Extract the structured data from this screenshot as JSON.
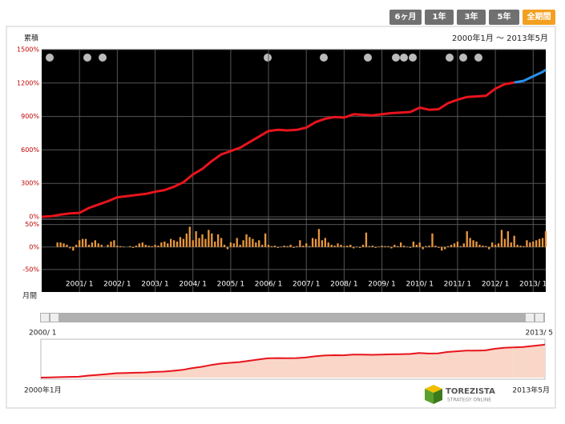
{
  "ui": {
    "buttons": [
      "6ヶ月",
      "1年",
      "3年",
      "5年",
      "全期間"
    ],
    "cumulative_label": "累積",
    "date_range": "2000年1月 〜 2013年5月",
    "monthly_label": "月間",
    "overview_start": "2000/ 1",
    "overview_end": "2013/ 5",
    "range_start": "2000年1月",
    "range_end": "2013年5月",
    "logo_name": "TOREZISTA",
    "logo_sub": "STRATEGY ONLINE"
  },
  "chart_data": [
    {
      "type": "line",
      "x": [
        "2000-01",
        "2000-04",
        "2000-07",
        "2000-10",
        "2001-01",
        "2001-04",
        "2001-07",
        "2001-10",
        "2002-01",
        "2002-04",
        "2002-07",
        "2002-10",
        "2003-01",
        "2003-04",
        "2003-07",
        "2003-10",
        "2004-01",
        "2004-04",
        "2004-07",
        "2004-10",
        "2005-01",
        "2005-04",
        "2005-07",
        "2005-10",
        "2006-01",
        "2006-04",
        "2006-07",
        "2006-10",
        "2007-01",
        "2007-04",
        "2007-07",
        "2007-10",
        "2008-01",
        "2008-04",
        "2008-07",
        "2008-10",
        "2009-01",
        "2009-04",
        "2009-07",
        "2009-10",
        "2010-01",
        "2010-04",
        "2010-07",
        "2010-10",
        "2011-01",
        "2011-04",
        "2011-07",
        "2011-10",
        "2012-01",
        "2012-04",
        "2012-07",
        "2012-10",
        "2013-01",
        "2013-04",
        "2013-05"
      ],
      "series": [
        {
          "color": "#e8141c",
          "values": [
            0,
            5,
            20,
            30,
            35,
            80,
            110,
            140,
            175,
            185,
            195,
            205,
            225,
            240,
            270,
            310,
            380,
            430,
            500,
            560,
            590,
            620,
            670,
            720,
            770,
            780,
            775,
            780,
            800,
            850,
            880,
            895,
            890,
            920,
            915,
            910,
            920,
            930,
            935,
            940,
            980,
            960,
            965,
            1020,
            1050,
            1075,
            1080,
            1085,
            1150,
            1190,
            1205,
            null,
            null,
            null,
            null
          ]
        },
        {
          "color": "#2a8fe8",
          "values": [
            null,
            null,
            null,
            null,
            null,
            null,
            null,
            null,
            null,
            null,
            null,
            null,
            null,
            null,
            null,
            null,
            null,
            null,
            null,
            null,
            null,
            null,
            null,
            null,
            null,
            null,
            null,
            null,
            null,
            null,
            null,
            null,
            null,
            null,
            null,
            null,
            null,
            null,
            null,
            null,
            null,
            null,
            null,
            null,
            null,
            null,
            null,
            null,
            null,
            null,
            1205,
            1220,
            1260,
            1300,
            1320
          ]
        }
      ],
      "xlim": [
        "2000-01",
        "2013-05"
      ],
      "xticks": [
        {
          "value": "2001-01",
          "label": "2001/ 1"
        },
        {
          "value": "2002-01",
          "label": "2002/ 1"
        },
        {
          "value": "2003-01",
          "label": "2003/ 1"
        },
        {
          "value": "2004-01",
          "label": "2004/ 1"
        },
        {
          "value": "2005-01",
          "label": "2005/ 1"
        },
        {
          "value": "2006-01",
          "label": "2006/ 1"
        },
        {
          "value": "2007-01",
          "label": "2007/ 1"
        },
        {
          "value": "2008-01",
          "label": "2008/ 1"
        },
        {
          "value": "2009-01",
          "label": "2009/ 1"
        },
        {
          "value": "2010-01",
          "label": "2010/ 1"
        },
        {
          "value": "2011-01",
          "label": "2011/ 1"
        },
        {
          "value": "2012-01",
          "label": "2012/ 1"
        },
        {
          "value": "2013-01",
          "label": "2013/ 1"
        }
      ],
      "ylim": [
        0,
        1500
      ],
      "yticks": [
        {
          "value": 0,
          "label": "0%"
        },
        {
          "value": 300,
          "label": "300%"
        },
        {
          "value": 600,
          "label": "600%"
        },
        {
          "value": 900,
          "label": "900%"
        },
        {
          "value": 1200,
          "label": "1200%"
        },
        {
          "value": 1500,
          "label": "1500%"
        }
      ],
      "grid": true
    },
    {
      "type": "bar",
      "color": "#e8963c",
      "x": [
        "2000-01",
        "2000-02",
        "2000-03",
        "2000-04",
        "2000-05",
        "2000-06",
        "2000-07",
        "2000-08",
        "2000-09",
        "2000-10",
        "2000-11",
        "2000-12",
        "2001-01",
        "2001-02",
        "2001-03",
        "2001-04",
        "2001-05",
        "2001-06",
        "2001-07",
        "2001-08",
        "2001-09",
        "2001-10",
        "2001-11",
        "2001-12",
        "2002-01",
        "2002-02",
        "2002-03",
        "2002-04",
        "2002-05",
        "2002-06",
        "2002-07",
        "2002-08",
        "2002-09",
        "2002-10",
        "2002-11",
        "2002-12",
        "2003-01",
        "2003-02",
        "2003-03",
        "2003-04",
        "2003-05",
        "2003-06",
        "2003-07",
        "2003-08",
        "2003-09",
        "2003-10",
        "2003-11",
        "2003-12",
        "2004-01",
        "2004-02",
        "2004-03",
        "2004-04",
        "2004-05",
        "2004-06",
        "2004-07",
        "2004-08",
        "2004-09",
        "2004-10",
        "2004-11",
        "2004-12",
        "2005-01",
        "2005-02",
        "2005-03",
        "2005-04",
        "2005-05",
        "2005-06",
        "2005-07",
        "2005-08",
        "2005-09",
        "2005-10",
        "2005-11",
        "2005-12",
        "2006-01",
        "2006-02",
        "2006-03",
        "2006-04",
        "2006-05",
        "2006-06",
        "2006-07",
        "2006-08",
        "2006-09",
        "2006-10",
        "2006-11",
        "2006-12",
        "2007-01",
        "2007-02",
        "2007-03",
        "2007-04",
        "2007-05",
        "2007-06",
        "2007-07",
        "2007-08",
        "2007-09",
        "2007-10",
        "2007-11",
        "2007-12",
        "2008-01",
        "2008-02",
        "2008-03",
        "2008-04",
        "2008-05",
        "2008-06",
        "2008-07",
        "2008-08",
        "2008-09",
        "2008-10",
        "2008-11",
        "2008-12",
        "2009-01",
        "2009-02",
        "2009-03",
        "2009-04",
        "2009-05",
        "2009-06",
        "2009-07",
        "2009-08",
        "2009-09",
        "2009-10",
        "2009-11",
        "2009-12",
        "2010-01",
        "2010-02",
        "2010-03",
        "2010-04",
        "2010-05",
        "2010-06",
        "2010-07",
        "2010-08",
        "2010-09",
        "2010-10",
        "2010-11",
        "2010-12",
        "2011-01",
        "2011-02",
        "2011-03",
        "2011-04",
        "2011-05",
        "2011-06",
        "2011-07",
        "2011-08",
        "2011-09",
        "2011-10",
        "2011-11",
        "2011-12",
        "2012-01",
        "2012-02",
        "2012-03",
        "2012-04",
        "2012-05",
        "2012-06",
        "2012-07",
        "2012-08",
        "2012-09",
        "2012-10",
        "2012-11",
        "2012-12",
        "2013-01",
        "2013-02",
        "2013-03",
        "2013-04",
        "2013-05"
      ],
      "values": [
        0,
        0,
        0,
        0,
        0,
        10,
        10,
        8,
        5,
        -3,
        -8,
        5,
        15,
        18,
        18,
        5,
        10,
        15,
        8,
        5,
        0,
        5,
        12,
        15,
        3,
        2,
        1,
        0,
        2,
        -2,
        3,
        8,
        10,
        5,
        3,
        2,
        5,
        3,
        10,
        12,
        8,
        18,
        15,
        12,
        22,
        18,
        30,
        45,
        15,
        35,
        20,
        28,
        18,
        38,
        30,
        12,
        28,
        20,
        5,
        -5,
        10,
        8,
        20,
        5,
        15,
        28,
        22,
        18,
        10,
        15,
        5,
        30,
        5,
        2,
        3,
        -2,
        1,
        3,
        2,
        5,
        -2,
        2,
        15,
        3,
        8,
        2,
        20,
        18,
        40,
        15,
        20,
        10,
        5,
        3,
        8,
        5,
        2,
        3,
        5,
        -3,
        1,
        -2,
        5,
        32,
        2,
        3,
        -2,
        1,
        3,
        2,
        2,
        -3,
        5,
        2,
        10,
        3,
        1,
        -2,
        12,
        5,
        10,
        -5,
        2,
        3,
        30,
        3,
        -2,
        -8,
        -5,
        2,
        5,
        8,
        12,
        2,
        8,
        35,
        20,
        15,
        12,
        5,
        3,
        2,
        -5,
        10,
        5,
        8,
        38,
        18,
        35,
        10,
        25,
        5,
        3,
        2,
        15,
        10,
        12,
        15,
        18,
        20,
        35
      ],
      "xlim": [
        "2000-01",
        "2013-05"
      ],
      "ylim": [
        -100,
        60
      ],
      "yticks": [
        {
          "value": 50,
          "label": "50%"
        },
        {
          "value": 0,
          "label": "0%"
        },
        {
          "value": -50,
          "label": "-50%"
        }
      ],
      "grid": true
    }
  ]
}
